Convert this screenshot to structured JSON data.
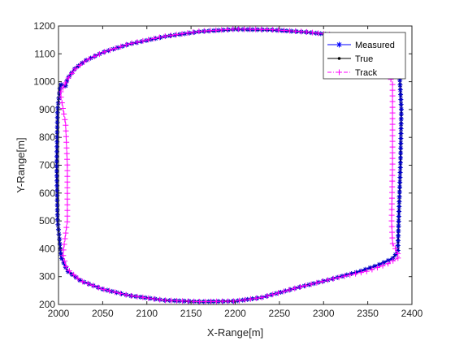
{
  "chart_data": {
    "type": "line",
    "title": "",
    "xlabel": "X-Range[m]",
    "ylabel": "Y-Range[m]",
    "xlim": [
      2000,
      2400
    ],
    "ylim": [
      200,
      1200
    ],
    "xticks": [
      2000,
      2050,
      2100,
      2150,
      2200,
      2250,
      2300,
      2350,
      2400
    ],
    "yticks": [
      200,
      300,
      400,
      500,
      600,
      700,
      800,
      900,
      1000,
      1100,
      1200
    ],
    "grid": false,
    "legend_position": "top-right",
    "series": [
      {
        "name": "Measured",
        "color": "#0000ff",
        "marker": "asterisk",
        "line_style": "solid"
      },
      {
        "name": "True",
        "color": "#000000",
        "marker": "dot",
        "line_style": "solid"
      },
      {
        "name": "Track",
        "color": "#ff00ff",
        "marker": "plus",
        "line_style": "dashdot"
      }
    ],
    "path_true": [
      [
        2008,
        985
      ],
      [
        2010,
        1010
      ],
      [
        2018,
        1045
      ],
      [
        2030,
        1075
      ],
      [
        2050,
        1105
      ],
      [
        2080,
        1135
      ],
      [
        2120,
        1162
      ],
      [
        2160,
        1180
      ],
      [
        2200,
        1188
      ],
      [
        2240,
        1186
      ],
      [
        2280,
        1178
      ],
      [
        2310,
        1168
      ],
      [
        2330,
        1155
      ],
      [
        2345,
        1130
      ],
      [
        2355,
        1100
      ],
      [
        2372,
        1070
      ],
      [
        2386,
        1030
      ],
      [
        2388,
        900
      ],
      [
        2387,
        700
      ],
      [
        2385,
        500
      ],
      [
        2384,
        390
      ],
      [
        2378,
        365
      ],
      [
        2362,
        342
      ],
      [
        2340,
        318
      ],
      [
        2310,
        292
      ],
      [
        2270,
        260
      ],
      [
        2230,
        225
      ],
      [
        2200,
        212
      ],
      [
        2160,
        210
      ],
      [
        2120,
        215
      ],
      [
        2080,
        232
      ],
      [
        2050,
        255
      ],
      [
        2025,
        285
      ],
      [
        2010,
        320
      ],
      [
        2003,
        370
      ],
      [
        1999,
        500
      ],
      [
        1998,
        700
      ],
      [
        1999,
        900
      ],
      [
        2002,
        990
      ],
      [
        2008,
        985
      ]
    ],
    "path_track": [
      [
        2005,
        978
      ],
      [
        2010,
        1008
      ],
      [
        2019,
        1046
      ],
      [
        2031,
        1076
      ],
      [
        2051,
        1106
      ],
      [
        2080,
        1136
      ],
      [
        2120,
        1163
      ],
      [
        2160,
        1181
      ],
      [
        2200,
        1189
      ],
      [
        2240,
        1187
      ],
      [
        2280,
        1179
      ],
      [
        2310,
        1168
      ],
      [
        2330,
        1154
      ],
      [
        2345,
        1128
      ],
      [
        2355,
        1098
      ],
      [
        2365,
        1060
      ],
      [
        2378,
        1000
      ],
      [
        2378,
        900
      ],
      [
        2378,
        700
      ],
      [
        2377,
        500
      ],
      [
        2378,
        420
      ],
      [
        2386,
        370
      ],
      [
        2372,
        345
      ],
      [
        2350,
        320
      ],
      [
        2310,
        292
      ],
      [
        2270,
        260
      ],
      [
        2230,
        225
      ],
      [
        2200,
        212
      ],
      [
        2160,
        210
      ],
      [
        2120,
        215
      ],
      [
        2080,
        232
      ],
      [
        2050,
        255
      ],
      [
        2025,
        285
      ],
      [
        2009,
        330
      ],
      [
        2005,
        380
      ],
      [
        2010,
        500
      ],
      [
        2010,
        700
      ],
      [
        2008,
        850
      ],
      [
        2002,
        960
      ],
      [
        2005,
        978
      ]
    ]
  }
}
